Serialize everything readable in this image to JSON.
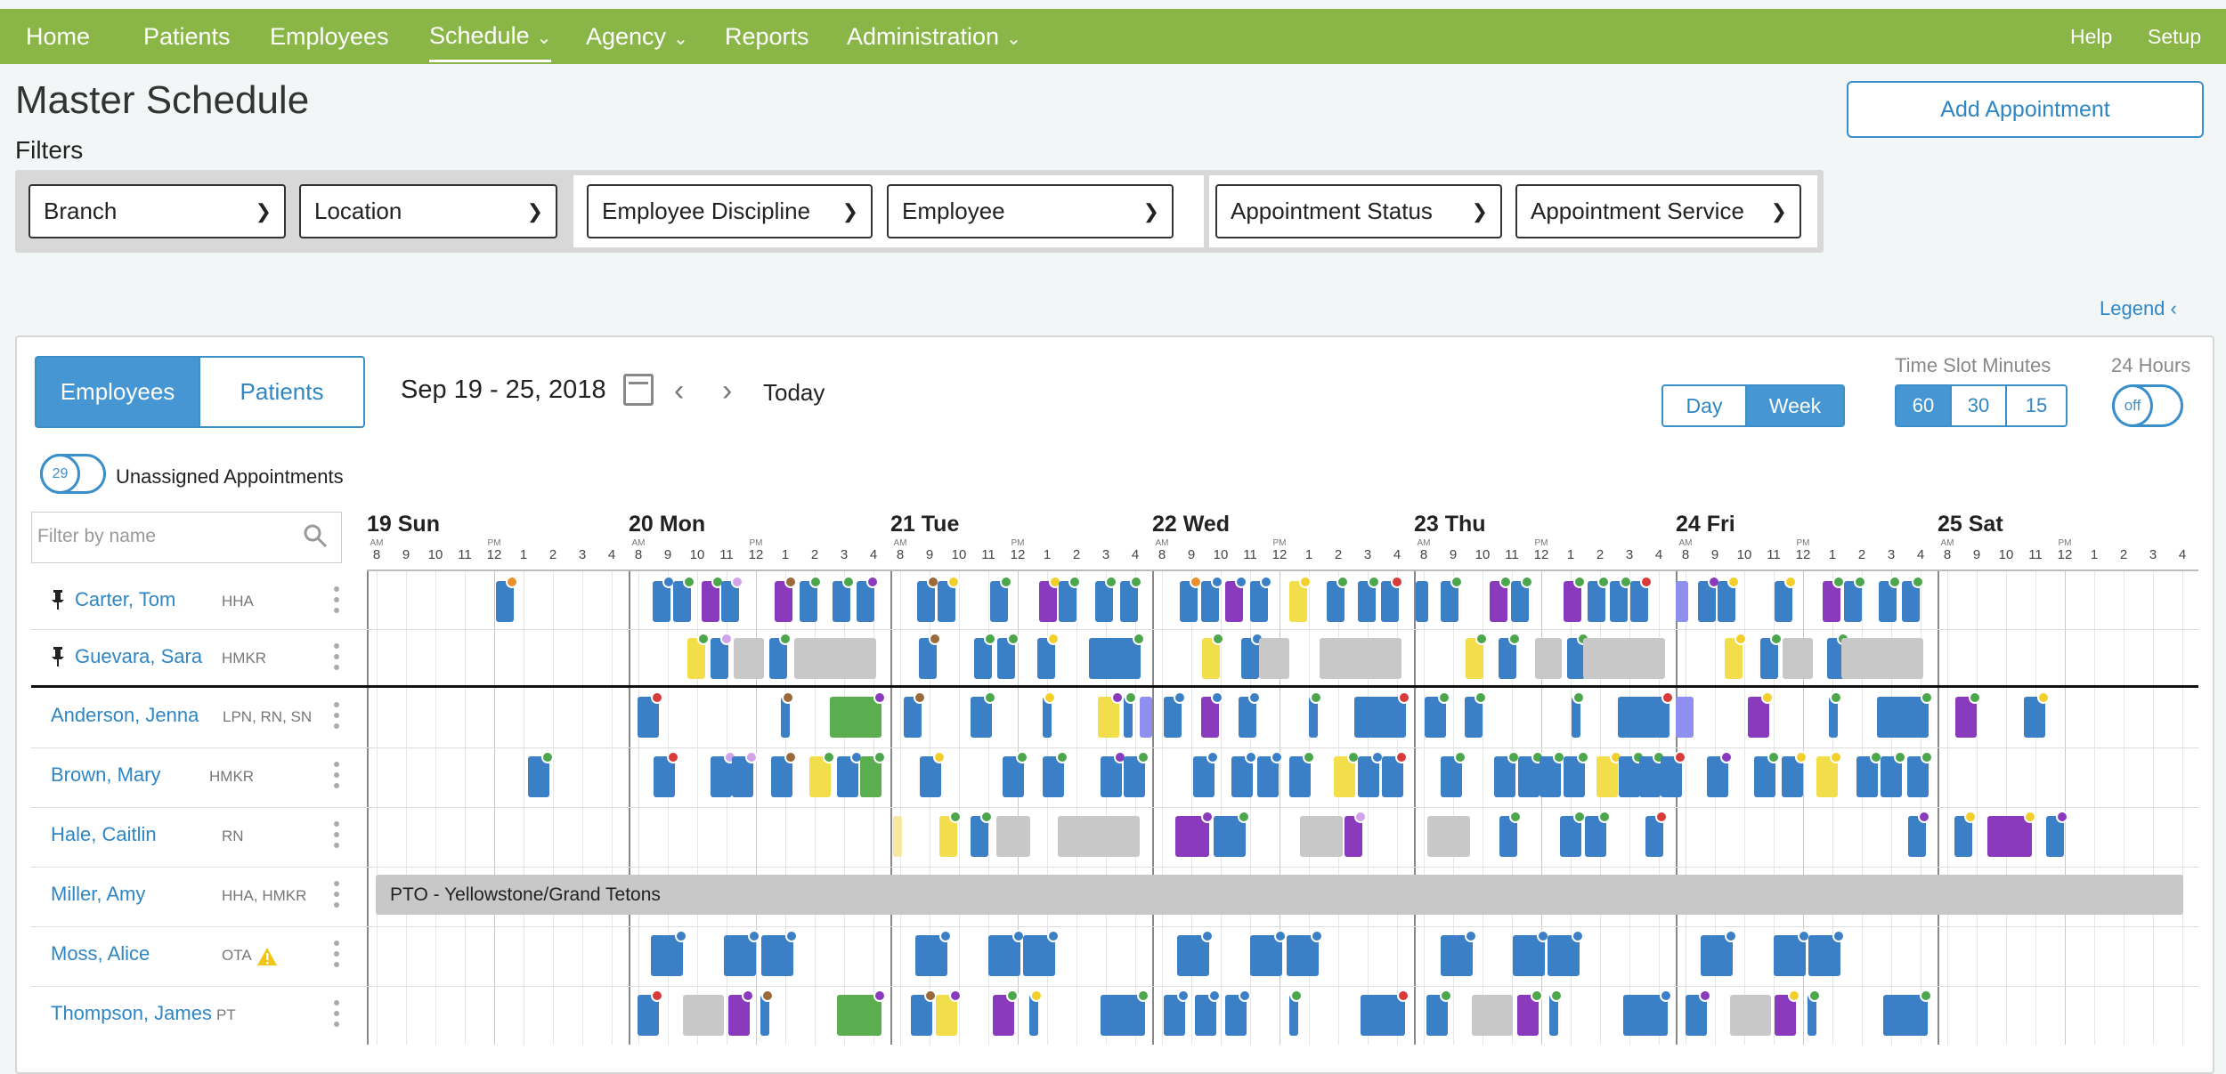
{
  "nav": {
    "items": [
      {
        "label": "Home",
        "dropdown": false
      },
      {
        "label": "Patients",
        "dropdown": false
      },
      {
        "label": "Employees",
        "dropdown": false
      },
      {
        "label": "Schedule",
        "dropdown": true,
        "active": true
      },
      {
        "label": "Agency",
        "dropdown": true
      },
      {
        "label": "Reports",
        "dropdown": false
      },
      {
        "label": "Administration",
        "dropdown": true
      }
    ],
    "right": [
      "Help",
      "Setup"
    ],
    "bar_color": "#8ab547"
  },
  "page": {
    "title": "Master Schedule",
    "filters_label": "Filters",
    "add_button": "Add Appointment",
    "legend": "Legend"
  },
  "filters": [
    "Branch",
    "Location",
    "Employee Discipline",
    "Employee",
    "Appointment Status",
    "Appointment Service"
  ],
  "toolbar": {
    "view_toggle": [
      "Employees",
      "Patients"
    ],
    "view_active": "Employees",
    "date_range": "Sep 19 - 25, 2018",
    "today": "Today",
    "range_buttons": [
      "Day",
      "Week"
    ],
    "range_active": "Week",
    "time_slot_label": "Time Slot Minutes",
    "time_slots": [
      "60",
      "30",
      "15"
    ],
    "time_slot_active": "60",
    "hours24_label": "24 Hours",
    "hours24_value": "off",
    "unassigned_count": "29",
    "unassigned_label": "Unassigned Appointments",
    "filter_placeholder": "Filter by name"
  },
  "days": [
    "19 Sun",
    "20 Mon",
    "21 Tue",
    "22 Wed",
    "23 Thu",
    "24 Fri",
    "25 Sat"
  ],
  "hours": [
    "8",
    "9",
    "10",
    "11",
    "12",
    "1",
    "2",
    "3",
    "4"
  ],
  "am_label": "AM",
  "pm_label": "PM",
  "employees": [
    {
      "name": "Carter, Tom",
      "discipline": "HHA",
      "pinned": true
    },
    {
      "name": "Guevara, Sara",
      "discipline": "HMKR",
      "pinned": true
    },
    {
      "name": "Anderson, Jenna",
      "discipline": "LPN, RN, SN",
      "pinned": false
    },
    {
      "name": "Brown, Mary",
      "discipline": "HMKR",
      "pinned": false
    },
    {
      "name": "Hale, Caitlin",
      "discipline": "RN",
      "pinned": false
    },
    {
      "name": "Miller, Amy",
      "discipline": "HHA, HMKR",
      "pinned": false
    },
    {
      "name": "Moss, Alice",
      "discipline": "OTA",
      "pinned": false,
      "warning": true
    },
    {
      "name": "Thompson, James",
      "discipline": "PT",
      "pinned": false
    }
  ],
  "pto_label": "PTO - Yellowstone/Grand Tetons",
  "colors": {
    "accent": "#3b8fc9",
    "appt_blue": "#3b7fc6",
    "appt_purple": "#8a3bbd",
    "appt_yellow": "#f2dd4a",
    "appt_gray": "#c8c8c8",
    "appt_green": "#5aae4f"
  },
  "icons": [
    "calendar-icon",
    "chevron-left-icon",
    "chevron-right-icon",
    "search-icon",
    "pin-icon",
    "warning-icon",
    "kebab-icon",
    "chevron-down-icon"
  ]
}
